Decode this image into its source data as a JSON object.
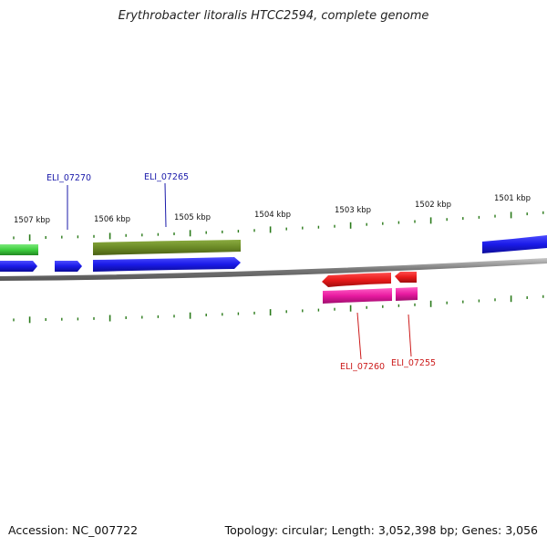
{
  "title": "Erythrobacter litoralis HTCC2594, complete genome",
  "accession": "Accession: NC_007722",
  "summary": "Topology: circular; Length: 3,052,398 bp; Genes: 3,056",
  "colors": {
    "forward_gene": "#1a1ae8",
    "reverse_gene": "#e81a1a",
    "green_track": "#3ecf3e",
    "olive_track": "#6b8a26",
    "magenta_track": "#e81aa0",
    "tick": "#2a7a1a",
    "backbone": "#888888",
    "label_forward": "#1a1aaa",
    "label_reverse": "#cc1a1a"
  },
  "kbp_labels": [
    "1507 kbp",
    "1506 kbp",
    "1505 kbp",
    "1504 kbp",
    "1503 kbp",
    "1502 kbp",
    "1501 kbp"
  ],
  "gene_labels": {
    "forward": [
      "ELI_07270",
      "ELI_07265"
    ],
    "reverse": [
      "ELI_07260",
      "ELI_07255"
    ]
  }
}
